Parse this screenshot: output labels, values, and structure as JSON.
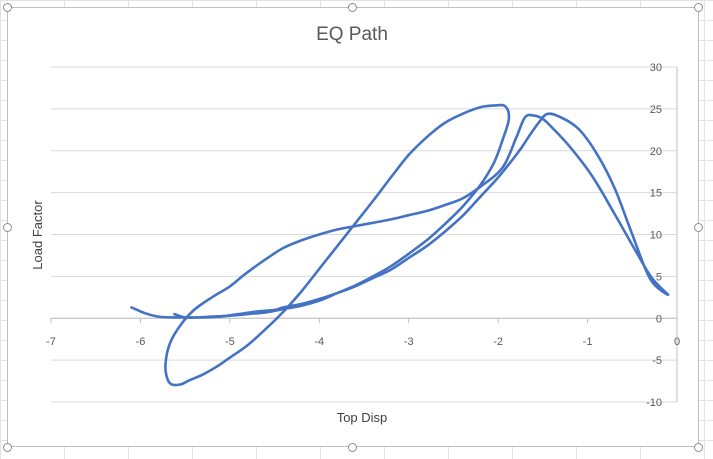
{
  "chart_data": {
    "type": "scatter",
    "title": "EQ Path",
    "xlabel": "Top Disp",
    "ylabel": "Load Factor",
    "xlim": [
      -7,
      0
    ],
    "ylim": [
      -10,
      30
    ],
    "xticks": [
      "-7",
      "-6",
      "-5",
      "-4",
      "-3",
      "-2",
      "-1",
      "0"
    ],
    "yticks": [
      "-10",
      "-5",
      "0",
      "5",
      "10",
      "15",
      "20",
      "25",
      "30"
    ],
    "grid": true,
    "legend": "none",
    "line_color": "#4472c4",
    "series": [
      {
        "x": [
          -6.1,
          -5.95,
          -5.8,
          -5.65,
          -5.5,
          -5.3,
          -5.1,
          -4.9,
          -4.7,
          -4.5,
          -4.4,
          -4.2,
          -4.0,
          -3.8,
          -3.6,
          -3.4,
          -3.2,
          -3.0,
          -2.8,
          -2.6,
          -2.4,
          -2.2,
          -2.0,
          -1.85,
          -1.75,
          -1.65,
          -1.55,
          -1.45,
          -1.3,
          -1.1,
          -0.9,
          -0.7,
          -0.5,
          -0.3,
          -0.1,
          -0.28,
          -0.45,
          -0.7,
          -0.95,
          -1.2,
          -1.4,
          -1.5,
          -1.6,
          -1.7,
          -1.8,
          -1.95,
          -2.2,
          -2.4,
          -2.6,
          -2.8,
          -3.0,
          -3.2,
          -3.4,
          -3.6,
          -3.8,
          -4.0,
          -4.2,
          -4.4,
          -4.55,
          -4.7,
          -4.85,
          -5.0,
          -5.2,
          -5.4,
          -5.55,
          -5.67,
          -5.72,
          -5.7,
          -5.65,
          -5.55,
          -5.45,
          -5.3,
          -5.15,
          -5.0,
          -4.8,
          -4.6,
          -4.4,
          -4.2,
          -4.0,
          -3.8,
          -3.6,
          -3.4,
          -3.2,
          -3.0,
          -2.8,
          -2.6,
          -2.4,
          -2.2,
          -2.05,
          -1.92,
          -1.88,
          -1.95,
          -2.05,
          -2.2,
          -2.4,
          -2.6,
          -2.8,
          -3.0,
          -3.2,
          -3.4,
          -3.6,
          -3.8,
          -4.0,
          -4.2,
          -4.4,
          -4.6,
          -4.8,
          -5.0,
          -5.2,
          -5.35,
          -5.5,
          -5.62
        ],
        "y": [
          1.3,
          0.6,
          0.2,
          0.1,
          0.1,
          0.1,
          0.2,
          0.5,
          0.8,
          1.0,
          1.3,
          1.7,
          2.3,
          3.0,
          3.8,
          4.8,
          5.8,
          7.2,
          8.6,
          10.3,
          12.2,
          14.5,
          16.8,
          18.8,
          20.2,
          21.8,
          23.3,
          24.4,
          24.0,
          22.6,
          19.7,
          15.6,
          10.0,
          4.7,
          2.8,
          4.8,
          7.8,
          12.5,
          17.0,
          20.5,
          22.8,
          23.8,
          24.2,
          24.0,
          21.5,
          18.0,
          15.7,
          14.3,
          13.5,
          12.8,
          12.3,
          11.8,
          11.4,
          11.0,
          10.6,
          10.0,
          9.3,
          8.4,
          7.4,
          6.3,
          5.1,
          3.8,
          2.5,
          1.0,
          -0.8,
          -3.0,
          -5.5,
          -7.2,
          -7.9,
          -7.9,
          -7.4,
          -6.7,
          -5.8,
          -4.7,
          -3.2,
          -1.3,
          0.8,
          3.2,
          5.9,
          8.6,
          11.3,
          14.0,
          16.8,
          19.5,
          21.6,
          23.3,
          24.4,
          25.2,
          25.4,
          25.3,
          23.8,
          21.3,
          18.5,
          15.9,
          13.3,
          11.2,
          9.3,
          7.7,
          6.2,
          5.0,
          3.9,
          3.0,
          2.1,
          1.5,
          1.1,
          0.7,
          0.5,
          0.3,
          0.2,
          0.1,
          0.1,
          0.5
        ]
      }
    ]
  }
}
